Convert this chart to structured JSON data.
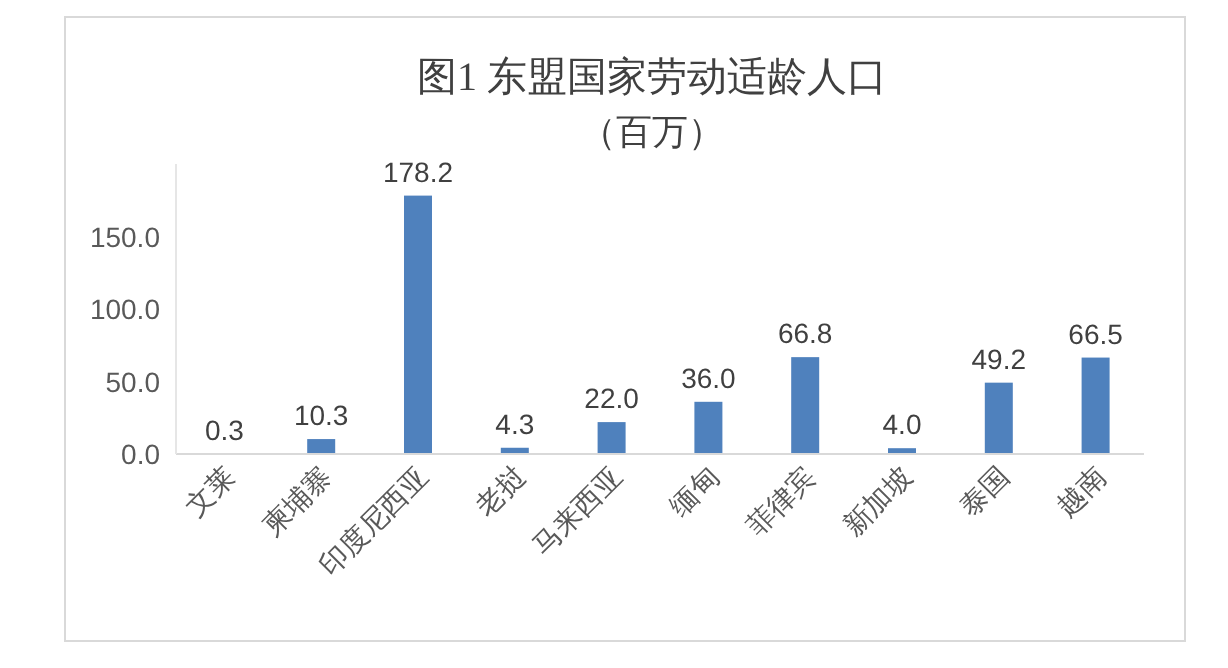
{
  "chart_data": {
    "type": "bar",
    "title": "图1 东盟国家劳动适龄人口",
    "subtitle": "（百万）",
    "categories": [
      "文莱",
      "柬埔寨",
      "印度尼西亚",
      "老挝",
      "马来西亚",
      "缅甸",
      "菲律宾",
      "新加坡",
      "泰国",
      "越南"
    ],
    "values": [
      0.3,
      10.3,
      178.2,
      4.3,
      22.0,
      36.0,
      66.8,
      4.0,
      49.2,
      66.5
    ],
    "value_labels": [
      "0.3",
      "10.3",
      "178.2",
      "4.3",
      "22.0",
      "36.0",
      "66.8",
      "4.0",
      "49.2",
      "66.5"
    ],
    "color": "#4f81bd",
    "ylim": [
      0,
      200
    ],
    "yticks": [
      {
        "value": 0,
        "label": "0.0"
      },
      {
        "value": 50,
        "label": "50.0"
      },
      {
        "value": 100,
        "label": "100.0"
      },
      {
        "value": 150,
        "label": "150.0"
      }
    ],
    "grid": false
  }
}
